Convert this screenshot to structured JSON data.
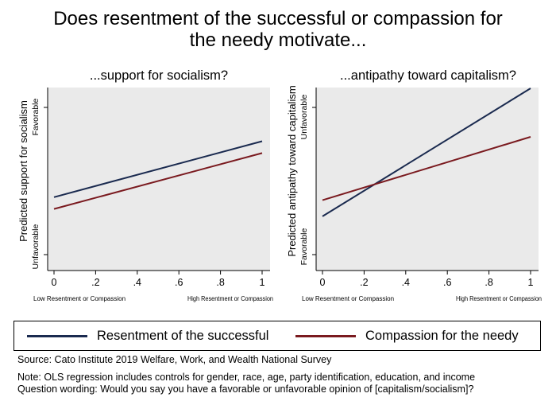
{
  "title_line1": "Does resentment of the successful or compassion for",
  "title_line2": "the needy motivate...",
  "colors": {
    "resentment": "#1a2a4f",
    "compassion": "#7a1a1f",
    "plot_bg": "#eaeaea",
    "axis": "#000000"
  },
  "chart_data": [
    {
      "type": "line",
      "title": "...support for socialism?",
      "ylabel": "Predicted support for socialism",
      "y_top_label": "Favorable",
      "y_bottom_label": "Unfavorable",
      "xlabel_left": "Low Resentment or Compassion",
      "xlabel_right": "High Resentment or Compassion",
      "x_ticks": [
        0,
        0.2,
        0.4,
        0.6,
        0.8,
        1
      ],
      "x_tick_labels": [
        "0",
        ".2",
        ".4",
        ".6",
        ".8",
        "1"
      ],
      "xlim": [
        0,
        1
      ],
      "ylim": [
        0,
        1
      ],
      "grid": false,
      "series": [
        {
          "name": "Resentment of the successful",
          "x": [
            0,
            1
          ],
          "y": [
            0.39,
            0.77
          ]
        },
        {
          "name": "Compassion for the needy",
          "x": [
            0,
            1
          ],
          "y": [
            0.31,
            0.69
          ]
        }
      ]
    },
    {
      "type": "line",
      "title": "...antipathy toward capitalism?",
      "ylabel": "Predicted antipathy toward capitalism",
      "y_top_label": "Unfavorable",
      "y_bottom_label": "Favorable",
      "xlabel_left": "Low Resentment or Compassion",
      "xlabel_right": "High Resentment or Compassion",
      "x_ticks": [
        0,
        0.2,
        0.4,
        0.6,
        0.8,
        1
      ],
      "x_tick_labels": [
        "0",
        ".2",
        ".4",
        ".6",
        ".8",
        "1"
      ],
      "xlim": [
        0,
        1
      ],
      "ylim": [
        0,
        1
      ],
      "grid": false,
      "series": [
        {
          "name": "Resentment of the successful",
          "x": [
            0,
            1
          ],
          "y": [
            0.26,
            1.13
          ]
        },
        {
          "name": "Compassion for the needy",
          "x": [
            0,
            1
          ],
          "y": [
            0.37,
            0.8
          ]
        }
      ]
    }
  ],
  "legend": [
    {
      "name": "Resentment of the successful",
      "color": "#1a2a4f"
    },
    {
      "name": "Compassion for the needy",
      "color": "#7a1a1f"
    }
  ],
  "source": "Source: Cato Institute 2019 Welfare, Work, and Wealth National Survey",
  "note": "Note: OLS regression includes controls for gender, race, age, party identification, education, and income",
  "question": "Question wording: Would you say you have a favorable or unfavorable opinion of [capitalism/socialism]?"
}
